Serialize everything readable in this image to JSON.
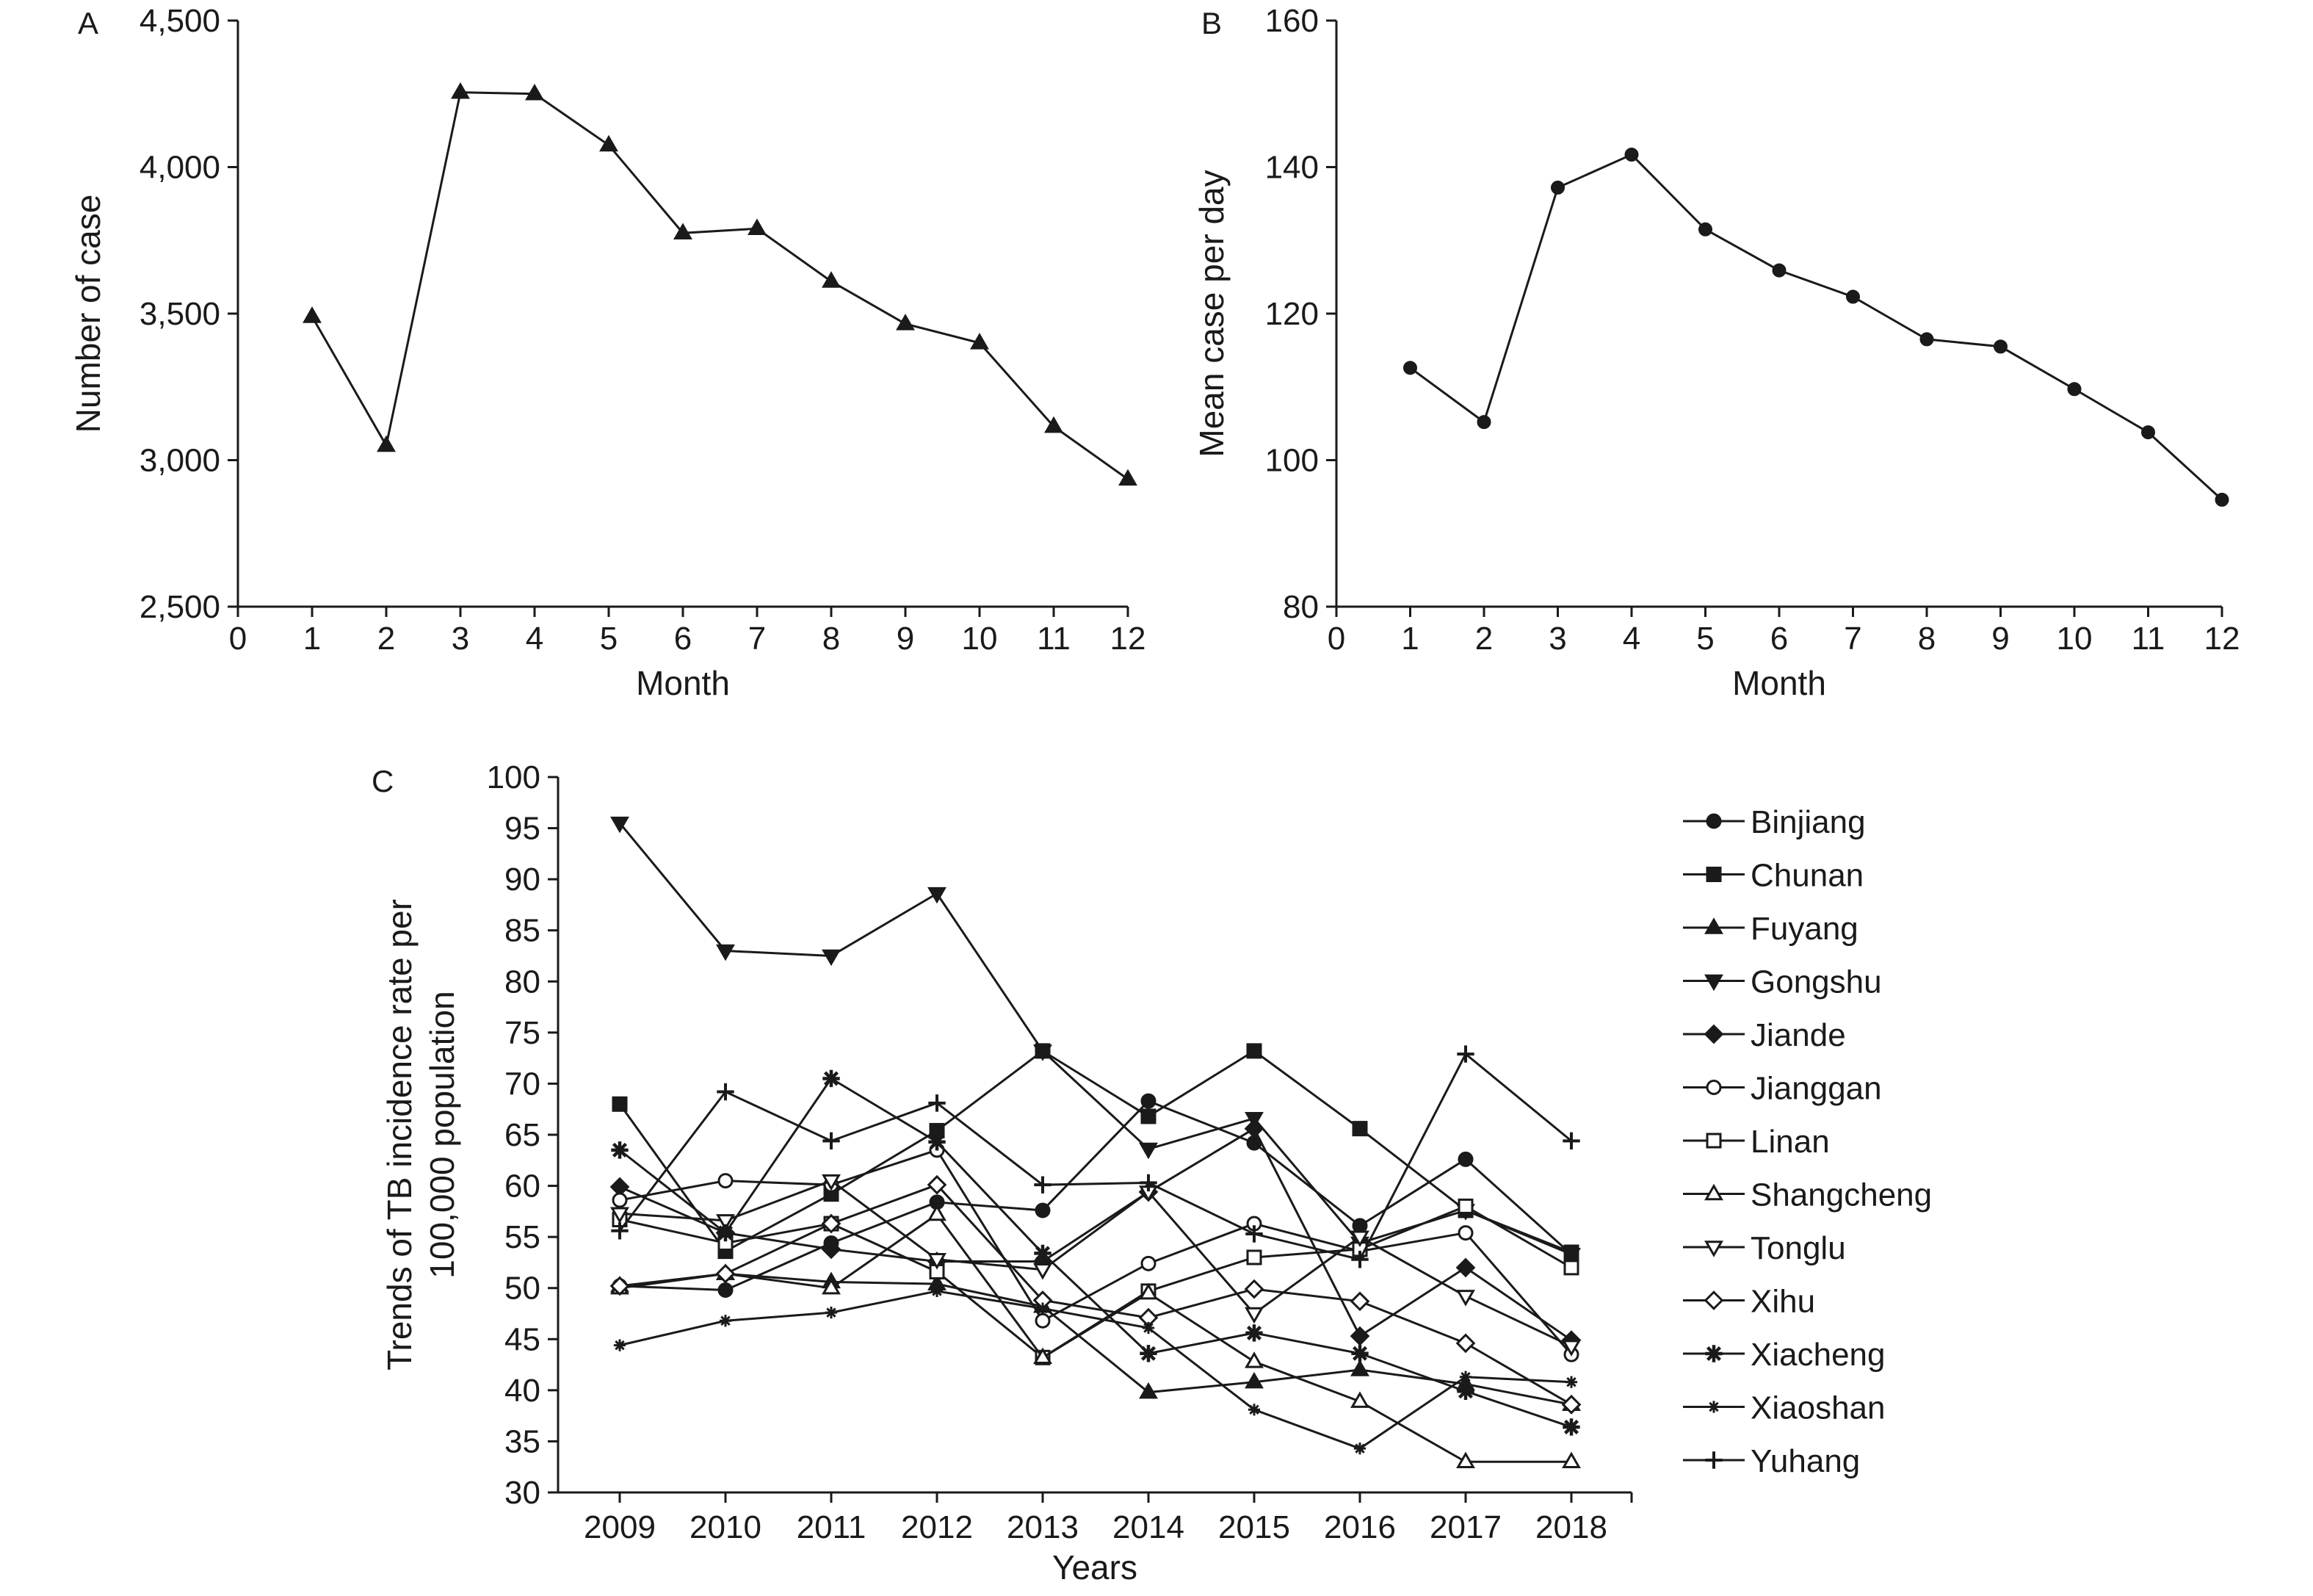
{
  "chart_data": [
    {
      "panel_label": "A",
      "type": "line",
      "marker": "triangle-filled",
      "xlabel": "Month",
      "ylabel": "Number of case",
      "xlim": [
        0,
        12
      ],
      "ylim": [
        2500,
        4500
      ],
      "xticks": [
        "0",
        "1",
        "2",
        "3",
        "4",
        "5",
        "6",
        "7",
        "8",
        "9",
        "10",
        "11",
        "12"
      ],
      "yticks": [
        "2,500",
        "3,000",
        "3,500",
        "4,000",
        "4,500"
      ],
      "x": [
        1,
        2,
        3,
        4,
        5,
        6,
        7,
        8,
        9,
        10,
        11,
        12
      ],
      "values": [
        3490,
        3050,
        4255,
        4250,
        4075,
        3775,
        3790,
        3610,
        3465,
        3400,
        3115,
        2935
      ]
    },
    {
      "panel_label": "B",
      "type": "line",
      "marker": "circle-filled",
      "xlabel": "Month",
      "ylabel": "Mean case per day",
      "xlim": [
        0,
        12
      ],
      "ylim": [
        80,
        160
      ],
      "xticks": [
        "0",
        "1",
        "2",
        "3",
        "4",
        "5",
        "6",
        "7",
        "8",
        "9",
        "10",
        "11",
        "12"
      ],
      "yticks": [
        "80",
        "100",
        "120",
        "140",
        "160"
      ],
      "x": [
        1,
        2,
        3,
        4,
        5,
        6,
        7,
        8,
        9,
        10,
        11,
        12
      ],
      "values": [
        112.6,
        105.2,
        137.2,
        141.7,
        131.5,
        125.9,
        122.3,
        116.5,
        115.5,
        109.7,
        103.8,
        94.6
      ]
    },
    {
      "panel_label": "C",
      "type": "line",
      "xlabel": "Years",
      "ylabel_lines": [
        "Trends of TB incidence rate per",
        "100,000 population"
      ],
      "ylim": [
        30,
        100
      ],
      "yticks": [
        "30",
        "35",
        "40",
        "45",
        "50",
        "55",
        "60",
        "65",
        "70",
        "75",
        "80",
        "85",
        "90",
        "95",
        "100"
      ],
      "categories": [
        "2009",
        "2010",
        "2011",
        "2012",
        "2013",
        "2014",
        "2015",
        "2016",
        "2017",
        "2018"
      ],
      "legend_position": "right",
      "series": [
        {
          "name": "Binjiang",
          "marker": "circle-filled",
          "values": [
            50.2,
            49.8,
            54.4,
            58.4,
            57.6,
            68.3,
            64.2,
            56.1,
            62.6,
            53.3
          ]
        },
        {
          "name": "Chunan",
          "marker": "square-filled",
          "values": [
            68.0,
            53.6,
            59.2,
            65.4,
            73.2,
            66.8,
            73.2,
            65.6,
            57.6,
            53.5
          ]
        },
        {
          "name": "Fuyang",
          "marker": "triangle-up-filled",
          "values": [
            50.2,
            51.4,
            50.6,
            50.4,
            48.2,
            39.8,
            40.8,
            42.0,
            40.6,
            38.6
          ]
        },
        {
          "name": "Gongshu",
          "marker": "triangle-down-filled",
          "values": [
            95.5,
            83.0,
            82.5,
            88.6,
            73.2,
            63.6,
            66.6,
            54.4,
            57.6,
            53.3
          ]
        },
        {
          "name": "Jiande",
          "marker": "diamond-filled",
          "values": [
            59.9,
            55.4,
            53.8,
            52.6,
            52.6,
            59.4,
            65.6,
            45.3,
            52.0,
            44.9
          ]
        },
        {
          "name": "Jianggan",
          "marker": "circle-open",
          "values": [
            58.6,
            60.5,
            60.1,
            63.5,
            46.8,
            52.4,
            56.3,
            53.6,
            55.4,
            43.5
          ]
        },
        {
          "name": "Linan",
          "marker": "square-open",
          "values": [
            56.7,
            54.4,
            56.3,
            51.6,
            43.2,
            49.7,
            53.0,
            53.8,
            58.0,
            52.0
          ]
        },
        {
          "name": "Shangcheng",
          "marker": "triangle-up-open",
          "values": [
            50.0,
            51.4,
            50.0,
            57.2,
            43.2,
            49.5,
            42.8,
            38.9,
            33.0,
            33.0
          ]
        },
        {
          "name": "Tonglu",
          "marker": "triangle-down-open",
          "values": [
            57.3,
            56.6,
            60.5,
            52.8,
            51.8,
            59.4,
            47.5,
            55.0,
            49.2,
            44.3
          ]
        },
        {
          "name": "Xihu",
          "marker": "diamond-open",
          "values": [
            50.2,
            51.4,
            56.3,
            60.1,
            48.8,
            47.1,
            49.9,
            48.7,
            44.6,
            38.6
          ]
        },
        {
          "name": "Xiacheng",
          "marker": "asterisk",
          "values": [
            63.5,
            55.4,
            70.5,
            64.3,
            53.4,
            43.6,
            45.6,
            43.6,
            39.9,
            36.4
          ]
        },
        {
          "name": "Xiaoshan",
          "marker": "star-small",
          "values": [
            44.4,
            46.8,
            47.6,
            49.7,
            48.0,
            46.1,
            38.1,
            34.3,
            41.3,
            40.8
          ]
        },
        {
          "name": "Yuhang",
          "marker": "plus",
          "values": [
            55.6,
            69.2,
            64.4,
            68.1,
            60.1,
            60.3,
            55.3,
            52.8,
            72.9,
            64.4
          ]
        }
      ]
    }
  ]
}
